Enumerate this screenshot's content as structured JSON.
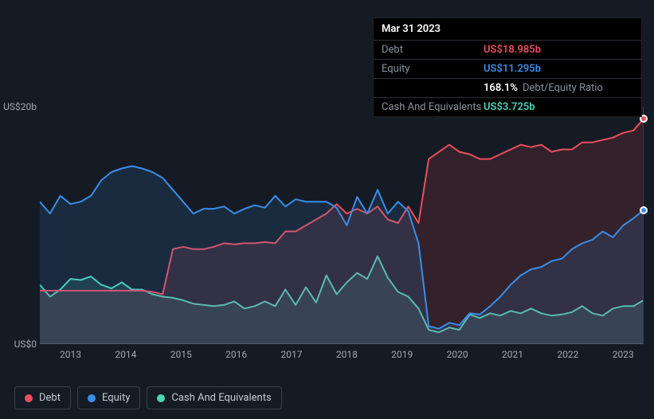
{
  "tooltip": {
    "date": "Mar 31 2023",
    "rows": [
      {
        "label": "Debt",
        "value": "US$18.985b",
        "color": "#eb4d5c"
      },
      {
        "label": "Equity",
        "value": "US$11.295b",
        "color": "#3a8de8"
      },
      {
        "label": "",
        "value": "168.1%",
        "extra": "Debt/Equity Ratio",
        "color": "#ffffff"
      },
      {
        "label": "Cash And Equivalents",
        "value": "US$3.725b",
        "color": "#4ad6b8"
      }
    ]
  },
  "chart": {
    "type": "area",
    "background_color": "#151b24",
    "grid_color": "#3a4048",
    "ylim": [
      0,
      20
    ],
    "y_ticks": [
      {
        "v": 0,
        "label": "US$0"
      },
      {
        "v": 20,
        "label": "US$20b"
      }
    ],
    "x_categories": [
      "2013",
      "2014",
      "2015",
      "2016",
      "2017",
      "2018",
      "2019",
      "2020",
      "2021",
      "2022",
      "2023"
    ],
    "label_fontsize": 12,
    "label_color": "#a0a8b4",
    "series": [
      {
        "name": "Cash And Equivalents",
        "color": "#4ad6b8",
        "fill_opacity": 0.14,
        "line_width": 2,
        "data": [
          5.0,
          4.0,
          4.6,
          5.5,
          5.4,
          5.7,
          5.0,
          4.7,
          5.2,
          4.6,
          4.6,
          4.2,
          4.0,
          3.9,
          3.7,
          3.4,
          3.3,
          3.2,
          3.3,
          3.6,
          3.0,
          3.2,
          3.6,
          3.2,
          4.6,
          3.3,
          4.8,
          3.5,
          5.8,
          4.2,
          5.2,
          6.0,
          5.5,
          7.4,
          5.6,
          4.4,
          4.0,
          3.0,
          1.2,
          1.0,
          1.4,
          1.2,
          2.5,
          2.2,
          2.6,
          2.4,
          2.8,
          2.6,
          3.0,
          2.6,
          2.4,
          2.5,
          2.7,
          3.2,
          2.6,
          2.4,
          3.0,
          3.2,
          3.2,
          3.7
        ]
      },
      {
        "name": "Debt",
        "color": "#eb4d5c",
        "fill_opacity": 0.14,
        "line_width": 2,
        "data": [
          4.5,
          4.5,
          4.5,
          4.5,
          4.5,
          4.5,
          4.5,
          4.5,
          4.5,
          4.5,
          4.5,
          4.4,
          4.2,
          8.0,
          8.2,
          8.0,
          8.0,
          8.2,
          8.5,
          8.4,
          8.5,
          8.5,
          8.6,
          8.5,
          9.5,
          9.5,
          10.0,
          10.5,
          11.0,
          11.8,
          11.0,
          11.4,
          11.0,
          11.6,
          10.5,
          10.2,
          11.6,
          10.2,
          15.6,
          16.2,
          16.8,
          16.2,
          16.0,
          15.6,
          15.6,
          16.0,
          16.4,
          16.8,
          16.6,
          16.8,
          16.2,
          16.4,
          16.4,
          17.0,
          17.0,
          17.2,
          17.4,
          17.8,
          18.0,
          19.0
        ]
      },
      {
        "name": "Equity",
        "color": "#3a8de8",
        "fill_opacity": 0.14,
        "line_width": 2,
        "data": [
          12.0,
          11.0,
          12.5,
          11.8,
          12.0,
          12.5,
          13.8,
          14.5,
          14.8,
          15.0,
          14.8,
          14.5,
          14.0,
          13.0,
          12.0,
          11.0,
          11.4,
          11.4,
          11.6,
          11.0,
          11.4,
          11.7,
          11.5,
          12.5,
          11.6,
          12.2,
          12.0,
          12.0,
          12.0,
          11.5,
          10.0,
          12.4,
          11.0,
          13.0,
          11.0,
          12.0,
          11.2,
          8.5,
          1.5,
          1.3,
          1.8,
          1.6,
          2.6,
          2.5,
          3.2,
          4.0,
          5.0,
          5.8,
          6.3,
          6.5,
          7.0,
          7.2,
          8.0,
          8.5,
          8.8,
          9.5,
          9.0,
          10.0,
          10.6,
          11.3
        ]
      }
    ],
    "cursor": {
      "x_index": 59,
      "dots": [
        {
          "series": "Debt",
          "color": "#eb4d5c"
        },
        {
          "series": "Equity",
          "color": "#3a8de8"
        }
      ]
    }
  },
  "legend": {
    "items": [
      {
        "label": "Debt",
        "color": "#eb4d5c"
      },
      {
        "label": "Equity",
        "color": "#3a8de8"
      },
      {
        "label": "Cash And Equivalents",
        "color": "#4ad6b8"
      }
    ]
  }
}
